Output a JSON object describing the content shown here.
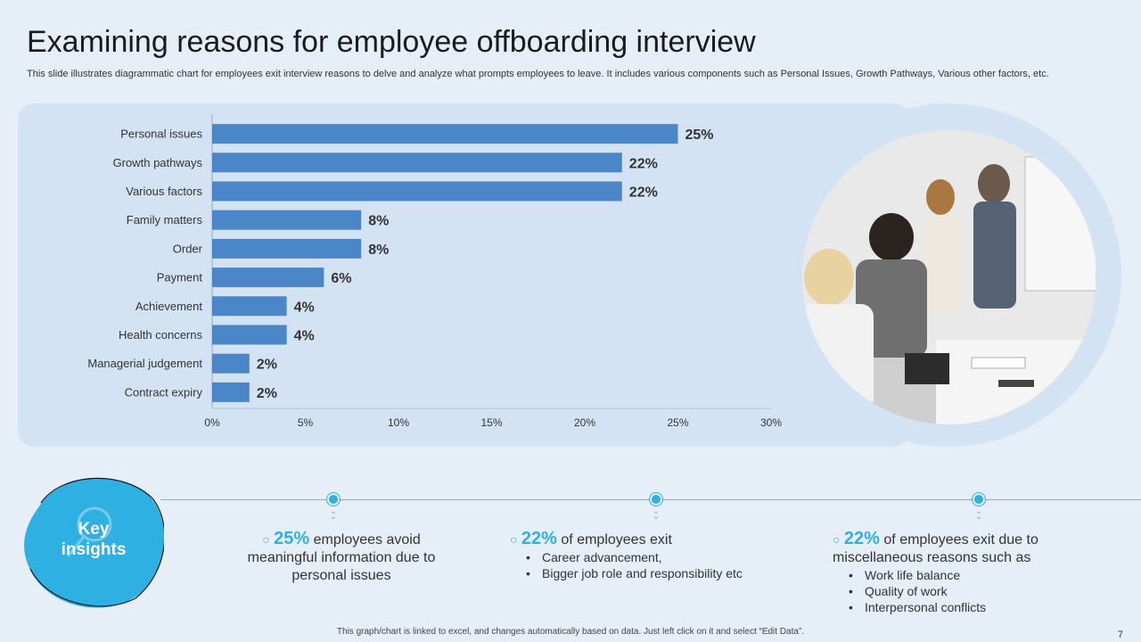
{
  "header": {
    "title": "Examining reasons for employee offboarding interview",
    "subtitle": "This slide illustrates diagrammatic chart for employees exit interview reasons to delve and analyze what prompts employees to leave. It includes various components such as Personal Issues, Growth Pathways, Various other factors, etc."
  },
  "chart_data": {
    "type": "bar",
    "orientation": "horizontal",
    "categories": [
      "Personal issues",
      "Growth pathways",
      "Various factors",
      "Family matters",
      "Order",
      "Payment",
      "Achievement",
      "Health concerns",
      "Managerial judgement",
      "Contract expiry"
    ],
    "values": [
      25,
      22,
      22,
      8,
      8,
      6,
      4,
      4,
      2,
      2
    ],
    "value_labels": [
      "25%",
      "22%",
      "22%",
      "8%",
      "8%",
      "6%",
      "4%",
      "4%",
      "2%",
      "2%"
    ],
    "xticks": [
      "0%",
      "5%",
      "10%",
      "15%",
      "20%",
      "25%",
      "30%"
    ],
    "xlim": [
      0,
      30
    ],
    "bar_color": "#4a86c8",
    "grid": false,
    "legend": "none"
  },
  "insights": {
    "title": "Key insights",
    "items": [
      {
        "bullet": "○",
        "pct": "25%",
        "text": "employees avoid meaningful information due to personal issues",
        "points": []
      },
      {
        "bullet": "○",
        "pct": "22%",
        "text": "of employees exit",
        "points": [
          "Career advancement,",
          "Bigger job role and responsibility etc"
        ]
      },
      {
        "bullet": "○",
        "pct": "22%",
        "text": "of employees exit due to miscellaneous reasons such as",
        "points": [
          "Work life balance",
          "Quality of work",
          "Interpersonal conflicts"
        ]
      }
    ]
  },
  "footer": {
    "note": "This graph/chart is linked to excel, and changes automatically based on data. Just left click on it and select “Edit Data”.",
    "page_number": "7"
  },
  "colors": {
    "accent": "#2fb0e3",
    "panel": "#d4e3f4",
    "background": "#e6eef7"
  }
}
